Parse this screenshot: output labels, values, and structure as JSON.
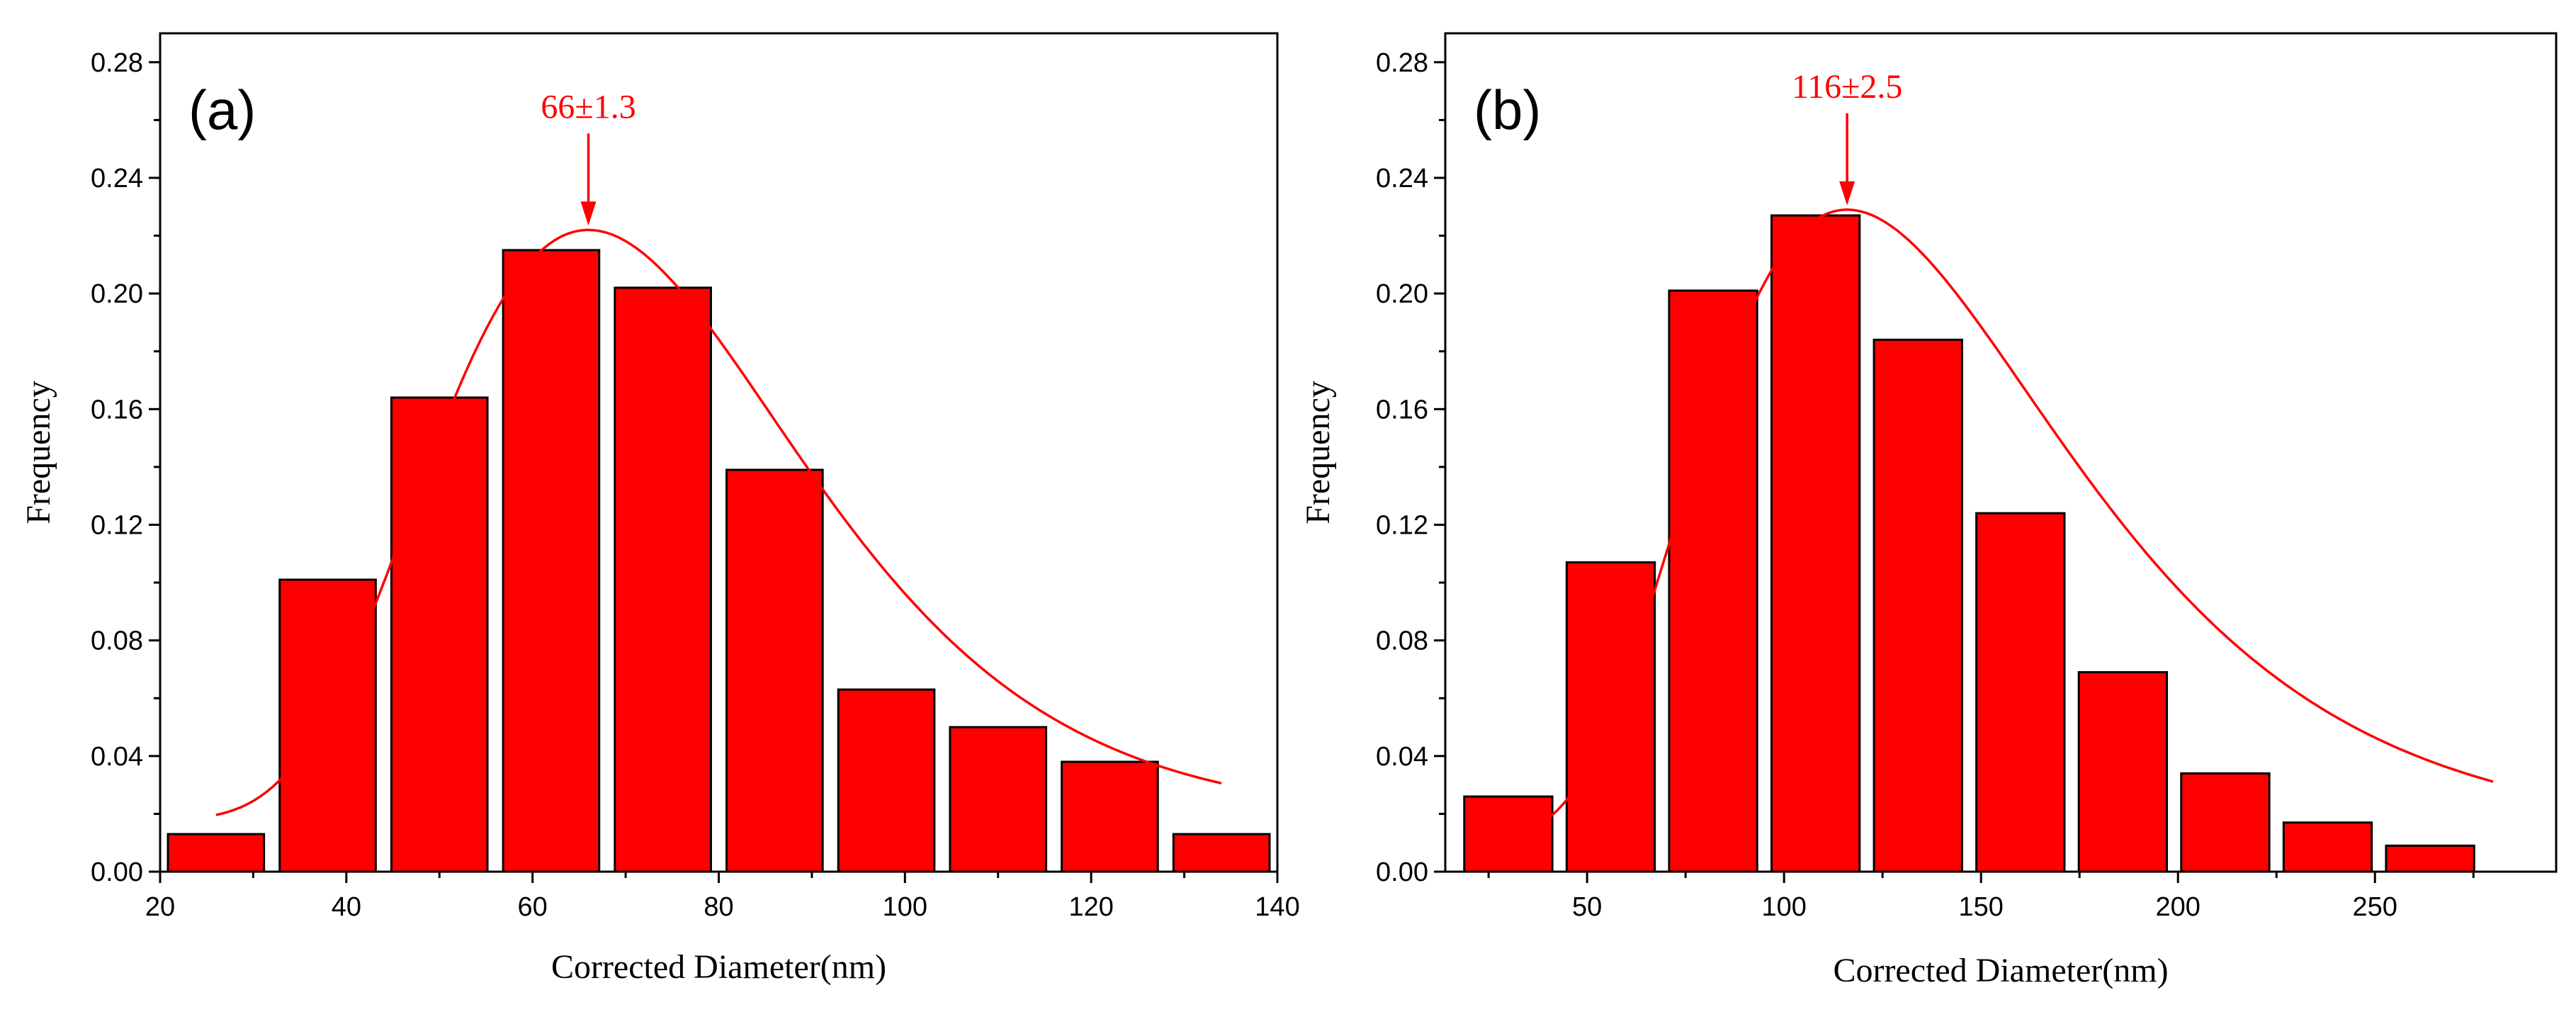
{
  "chart_data": [
    {
      "type": "bar",
      "panel_label": "(a)",
      "xlabel": "Corrected Diameter(nm)",
      "ylabel": "Frequency",
      "xlim": [
        20,
        140
      ],
      "ylim": [
        0,
        0.29
      ],
      "x_ticks": [
        20,
        40,
        60,
        80,
        100,
        120,
        140
      ],
      "x_tick_labels": [
        "20",
        "40",
        "60",
        "80",
        "100",
        "120",
        "140"
      ],
      "y_ticks": [
        0,
        0.04,
        0.08,
        0.12,
        0.16,
        0.2,
        0.24,
        0.28
      ],
      "y_tick_labels": [
        "0.00",
        "0.04",
        "0.08",
        "0.12",
        "0.16",
        "0.20",
        "0.24",
        "0.28"
      ],
      "bin_width": 12,
      "bars": [
        {
          "x": 26,
          "value": 0.013
        },
        {
          "x": 38,
          "value": 0.101
        },
        {
          "x": 50,
          "value": 0.164
        },
        {
          "x": 62,
          "value": 0.215
        },
        {
          "x": 74,
          "value": 0.202
        },
        {
          "x": 86,
          "value": 0.139
        },
        {
          "x": 98,
          "value": 0.063
        },
        {
          "x": 110,
          "value": 0.05
        },
        {
          "x": 122,
          "value": 0.038
        },
        {
          "x": 134,
          "value": 0.013
        }
      ],
      "fit_curve": {
        "type": "lognormal",
        "peak_x": 66,
        "peak_y": 0.222,
        "sigma_ln": 0.3,
        "baseline": 0.018,
        "x_range": [
          26,
          134
        ]
      },
      "peak_annotation": {
        "text": "66±1.3",
        "x": 66,
        "y": 0.222
      },
      "colors": {
        "bar_fill": "#ff0000",
        "bar_edge": "#000000",
        "curve": "#ff0000",
        "annotation": "#ff0000"
      }
    },
    {
      "type": "bar",
      "panel_label": "(b)",
      "xlabel": "Corrected Diameter(nm)",
      "ylabel": "Frequency",
      "xlim": [
        14,
        296
      ],
      "ylim": [
        0,
        0.29
      ],
      "x_ticks": [
        50,
        100,
        150,
        200,
        250
      ],
      "x_tick_labels": [
        "50",
        "100",
        "150",
        "200",
        "250"
      ],
      "y_ticks": [
        0,
        0.04,
        0.08,
        0.12,
        0.16,
        0.2,
        0.24,
        0.28
      ],
      "y_tick_labels": [
        "0.00",
        "0.04",
        "0.08",
        "0.12",
        "0.16",
        "0.20",
        "0.24",
        "0.28"
      ],
      "bin_width": 26,
      "bars": [
        {
          "x": 30,
          "value": 0.026
        },
        {
          "x": 56,
          "value": 0.107
        },
        {
          "x": 82,
          "value": 0.201
        },
        {
          "x": 108,
          "value": 0.227
        },
        {
          "x": 134,
          "value": 0.184
        },
        {
          "x": 160,
          "value": 0.124
        },
        {
          "x": 186,
          "value": 0.069
        },
        {
          "x": 212,
          "value": 0.034
        },
        {
          "x": 238,
          "value": 0.017
        },
        {
          "x": 264,
          "value": 0.009
        }
      ],
      "fit_curve": {
        "type": "lognormal",
        "peak_x": 116,
        "peak_y": 0.229,
        "sigma_ln": 0.4,
        "baseline": 0.012,
        "x_range": [
          25,
          280
        ]
      },
      "peak_annotation": {
        "text": "116±2.5",
        "x": 116,
        "y": 0.229
      },
      "colors": {
        "bar_fill": "#ff0000",
        "bar_edge": "#000000",
        "curve": "#ff0000",
        "annotation": "#ff0000"
      }
    }
  ]
}
